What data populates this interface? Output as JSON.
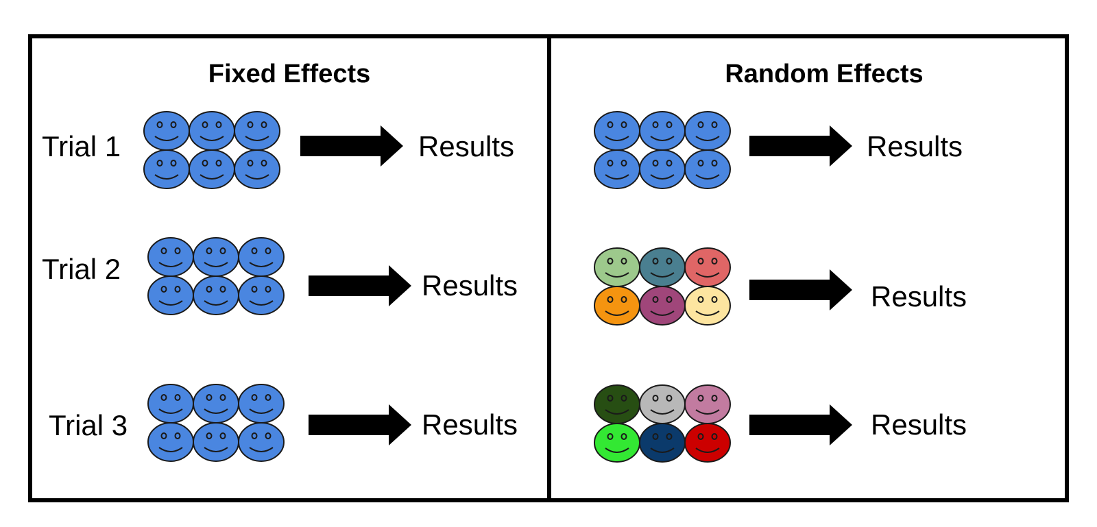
{
  "panels": [
    {
      "title": "Fixed Effects",
      "rows": [
        {
          "trial_label": "Trial 1",
          "result_label": "Results",
          "face_colors": [
            "#4a86e0",
            "#4a86e0",
            "#4a86e0",
            "#4a86e0",
            "#4a86e0",
            "#4a86e0"
          ]
        },
        {
          "trial_label": "Trial 2",
          "result_label": "Results",
          "face_colors": [
            "#4a86e0",
            "#4a86e0",
            "#4a86e0",
            "#4a86e0",
            "#4a86e0",
            "#4a86e0"
          ]
        },
        {
          "trial_label": "Trial 3",
          "result_label": "Results",
          "face_colors": [
            "#4a86e0",
            "#4a86e0",
            "#4a86e0",
            "#4a86e0",
            "#4a86e0",
            "#4a86e0"
          ]
        }
      ]
    },
    {
      "title": "Random Effects",
      "rows": [
        {
          "trial_label": "",
          "result_label": "Results",
          "face_colors": [
            "#4a86e0",
            "#4a86e0",
            "#4a86e0",
            "#4a86e0",
            "#4a86e0",
            "#4a86e0"
          ]
        },
        {
          "trial_label": "",
          "result_label": "Results",
          "face_colors": [
            "#9dc98c",
            "#4a7f90",
            "#e06666",
            "#f59410",
            "#a0467a",
            "#fde5a0"
          ]
        },
        {
          "trial_label": "",
          "result_label": "Results",
          "face_colors": [
            "#274e13",
            "#b8b8b8",
            "#c27ba0",
            "#33e833",
            "#0b3a6b",
            "#cc0000"
          ]
        }
      ]
    }
  ]
}
